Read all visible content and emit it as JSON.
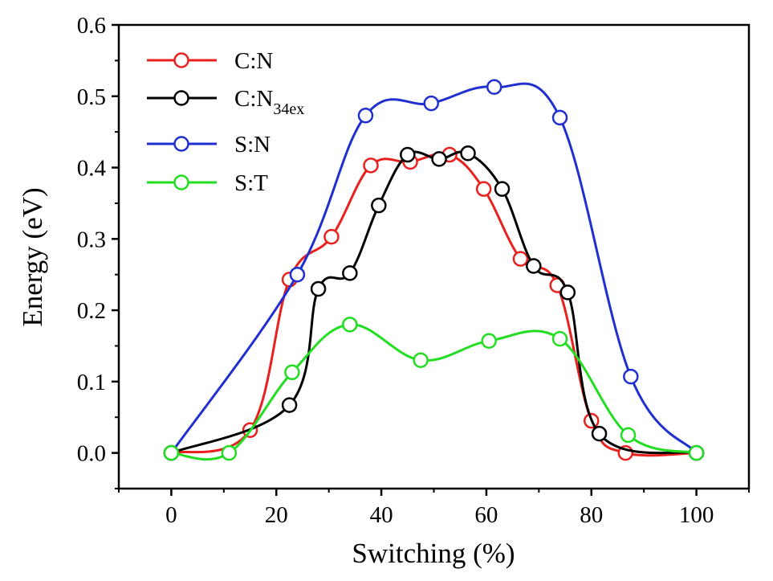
{
  "chart_data": {
    "type": "line",
    "title": "",
    "xlabel": "Switching (%)",
    "ylabel": "Energy (eV)",
    "xlim": [
      -10,
      110
    ],
    "ylim": [
      -0.05,
      0.6
    ],
    "xticks": [
      "0",
      "20",
      "40",
      "60",
      "80",
      "100"
    ],
    "yticks": [
      "0.0",
      "0.1",
      "0.2",
      "0.3",
      "0.4",
      "0.5",
      "0.6"
    ],
    "grid": false,
    "legend_position": "top-left",
    "series": [
      {
        "name": "C:N",
        "name_main": "C:N",
        "name_sub": "",
        "color": "#e8201e",
        "x": [
          0,
          15,
          22.5,
          30.5,
          38,
          45.5,
          53,
          59.5,
          66.5,
          73.5,
          80,
          86.5,
          100
        ],
        "y": [
          0,
          0.032,
          0.243,
          0.303,
          0.403,
          0.408,
          0.418,
          0.37,
          0.272,
          0.235,
          0.045,
          0,
          0
        ]
      },
      {
        "name": "C:N34ex",
        "name_main": "C:N",
        "name_sub": "34ex",
        "color": "#000000",
        "x": [
          0,
          22.5,
          28,
          34,
          39.5,
          45,
          51,
          56.5,
          63,
          69,
          75.5,
          81.5,
          100
        ],
        "y": [
          0,
          0.067,
          0.23,
          0.252,
          0.347,
          0.418,
          0.412,
          0.42,
          0.37,
          0.262,
          0.225,
          0.027,
          0
        ]
      },
      {
        "name": "S:N",
        "name_main": "S:N",
        "name_sub": "",
        "color": "#1f2fd0",
        "x": [
          0,
          24,
          37,
          49.5,
          61.5,
          74,
          87.5,
          100
        ],
        "y": [
          0,
          0.25,
          0.473,
          0.49,
          0.513,
          0.47,
          0.107,
          0
        ]
      },
      {
        "name": "S:T",
        "name_main": "S:T",
        "name_sub": "",
        "color": "#22dd22",
        "x": [
          0,
          11,
          23,
          34,
          47.5,
          60.5,
          74,
          87,
          100
        ],
        "y": [
          0,
          0,
          0.113,
          0.18,
          0.13,
          0.157,
          0.16,
          0.025,
          0
        ]
      }
    ]
  }
}
